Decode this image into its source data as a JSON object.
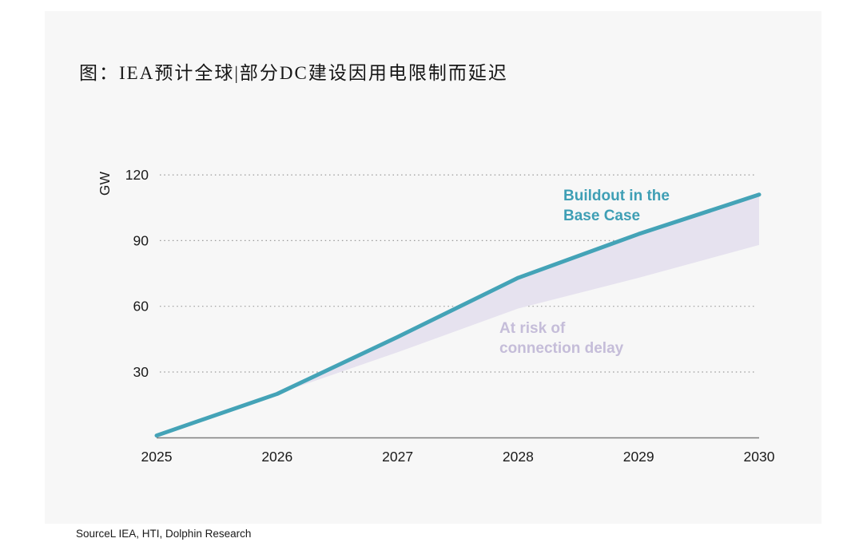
{
  "header": {
    "title": "图：IEA预计全球|部分DC建设因用电限制而延迟"
  },
  "footer": {
    "source": "SourceL IEA, HTI, Dolphin Research"
  },
  "colors": {
    "page_bg": "#FFFFFF",
    "card_bg": "#F7F7F7",
    "base_case_line": "#44A3B7",
    "base_label_text": "#3F9FB5",
    "risk_area_fill": "#E6E2EF",
    "risk_label_text": "#C5BDD9",
    "gridline": "#9A9A9A",
    "axis_line": "#7E7E7E",
    "text": "#1A1A1A"
  },
  "chart_data": {
    "type": "area",
    "title": "图：IEA预计全球|部分DC建设因用电限制而延迟",
    "xlabel": "",
    "ylabel": "GW",
    "x": [
      2025,
      2026,
      2027,
      2028,
      2029,
      2030
    ],
    "yticks": [
      30,
      60,
      90,
      120
    ],
    "ylim": [
      0,
      130
    ],
    "grid": "horizontal-dotted",
    "legend_position": "inline-annotations",
    "series": [
      {
        "name": "Buildout in the Base Case",
        "role": "line",
        "values": [
          1,
          20,
          46,
          73,
          93,
          111
        ]
      },
      {
        "name": "Delayed buildout (lower bound of at-risk band)",
        "role": "band-lower",
        "values": [
          1,
          20,
          39,
          59,
          73,
          88
        ]
      }
    ],
    "band_label": "At risk of connection delay",
    "annotations": [
      {
        "text": "Buildout in the\nBase Case",
        "series": "Buildout in the Base Case"
      },
      {
        "text": "At risk of\nconnection delay",
        "series": "At risk of connection delay"
      }
    ]
  }
}
